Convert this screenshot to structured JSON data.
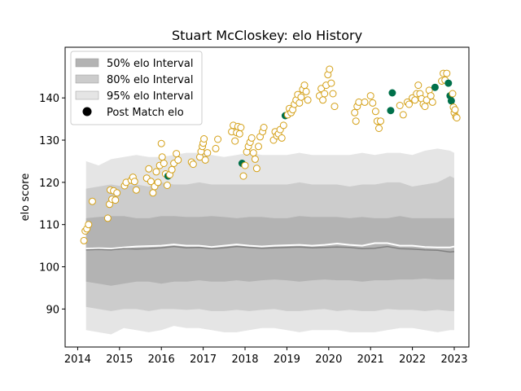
{
  "chart_data": {
    "type": "scatter",
    "title": "Stuart McCloskey: elo History",
    "xlabel": "",
    "ylabel": "elo score",
    "xlim": [
      2013.7,
      2023.35
    ],
    "ylim": [
      81,
      152
    ],
    "x_ticks": [
      "2014",
      "2015",
      "2016",
      "2017",
      "2018",
      "2019",
      "2020",
      "2021",
      "2022",
      "2023"
    ],
    "y_ticks": [
      "90",
      "100",
      "110",
      "120",
      "130",
      "140"
    ],
    "legend_position": "top-left",
    "legend": [
      {
        "label": "50% elo Interval",
        "kind": "band50"
      },
      {
        "label": "80% elo Interval",
        "kind": "band80"
      },
      {
        "label": "95% elo Interval",
        "kind": "band95"
      },
      {
        "label": "Post Match elo",
        "kind": "point"
      }
    ],
    "colors": {
      "band50": "#b3b3b3",
      "band80": "#cccccc",
      "band95": "#e5e5e5",
      "median": "#808080",
      "mean": "#ffffff",
      "point_face": "#ffffff",
      "point_edge": "#d4a017",
      "win": "#00704a"
    },
    "interval_series": {
      "x": [
        2014.2,
        2014.5,
        2014.8,
        2015.1,
        2015.4,
        2015.7,
        2016.0,
        2016.3,
        2016.6,
        2016.9,
        2017.2,
        2017.5,
        2017.8,
        2018.1,
        2018.4,
        2018.7,
        2019.0,
        2019.3,
        2019.6,
        2019.9,
        2020.2,
        2020.5,
        2020.8,
        2021.1,
        2021.4,
        2021.7,
        2022.0,
        2022.3,
        2022.6,
        2022.9,
        2023.0
      ],
      "median": [
        104.0,
        104.1,
        104.0,
        104.3,
        104.2,
        104.3,
        104.5,
        104.8,
        104.5,
        104.6,
        104.3,
        104.5,
        104.8,
        104.6,
        104.4,
        104.5,
        104.6,
        104.7,
        104.5,
        104.6,
        104.7,
        104.6,
        104.3,
        104.4,
        104.8,
        104.3,
        104.2,
        104.0,
        103.9,
        103.5,
        103.6
      ],
      "mean": [
        104.3,
        104.4,
        104.3,
        104.6,
        104.8,
        104.9,
        105.0,
        105.3,
        105.0,
        105.0,
        104.7,
        105.0,
        105.3,
        105.0,
        104.8,
        105.0,
        105.1,
        105.2,
        105.0,
        105.2,
        105.5,
        105.2,
        105.0,
        105.6,
        105.6,
        105.0,
        105.0,
        104.7,
        104.6,
        104.6,
        104.8
      ],
      "p25": [
        96.5,
        96.0,
        95.5,
        96.0,
        96.5,
        96.5,
        96.0,
        96.5,
        96.5,
        96.8,
        96.5,
        96.5,
        96.8,
        96.5,
        96.8,
        97.0,
        96.8,
        96.5,
        96.8,
        97.0,
        96.8,
        96.8,
        96.5,
        96.8,
        96.8,
        97.0,
        97.0,
        97.2,
        97.0,
        97.0,
        97.0
      ],
      "p75": [
        111.5,
        111.8,
        112.0,
        112.0,
        111.5,
        111.5,
        112.0,
        112.0,
        111.8,
        111.8,
        112.0,
        111.8,
        111.5,
        111.8,
        111.8,
        111.5,
        111.5,
        112.0,
        111.8,
        111.8,
        111.8,
        111.5,
        111.8,
        111.5,
        111.5,
        112.0,
        111.5,
        111.5,
        111.5,
        111.5,
        111.5
      ],
      "p10": [
        90.5,
        90.0,
        89.5,
        90.0,
        90.0,
        89.5,
        90.0,
        90.0,
        89.8,
        90.0,
        89.5,
        89.5,
        89.8,
        89.5,
        89.8,
        90.0,
        89.5,
        89.5,
        89.8,
        90.0,
        89.5,
        89.8,
        89.5,
        89.5,
        90.0,
        89.8,
        89.8,
        89.5,
        89.8,
        89.5,
        89.5
      ],
      "p90": [
        118.5,
        119.0,
        119.5,
        119.0,
        119.5,
        119.0,
        120.0,
        119.5,
        119.5,
        120.0,
        119.5,
        119.5,
        119.5,
        119.5,
        119.5,
        119.5,
        119.5,
        120.0,
        119.5,
        119.5,
        119.5,
        119.0,
        119.5,
        119.5,
        120.0,
        120.0,
        119.0,
        119.5,
        120.0,
        121.5,
        121.0
      ],
      "p2_5": [
        85.0,
        84.5,
        84.0,
        85.5,
        85.0,
        84.5,
        85.0,
        86.0,
        85.5,
        85.5,
        85.0,
        84.5,
        84.5,
        85.0,
        85.5,
        85.5,
        85.0,
        84.5,
        85.0,
        85.0,
        85.0,
        84.5,
        84.5,
        84.5,
        85.0,
        85.5,
        85.5,
        85.0,
        84.5,
        85.0,
        85.0
      ],
      "p97_5": [
        125.0,
        124.0,
        125.5,
        126.0,
        126.5,
        126.0,
        126.0,
        126.5,
        127.0,
        127.0,
        126.5,
        126.0,
        126.5,
        127.0,
        126.5,
        126.5,
        126.5,
        127.0,
        126.5,
        126.5,
        126.5,
        126.5,
        127.0,
        126.5,
        127.0,
        127.0,
        126.5,
        127.5,
        128.0,
        127.5,
        127.0
      ]
    },
    "points": [
      {
        "x": 2014.15,
        "y": 106.2,
        "win": false
      },
      {
        "x": 2014.18,
        "y": 108.5,
        "win": false
      },
      {
        "x": 2014.22,
        "y": 109.0,
        "win": false
      },
      {
        "x": 2014.26,
        "y": 110.0,
        "win": false
      },
      {
        "x": 2014.35,
        "y": 115.5,
        "win": false
      },
      {
        "x": 2014.72,
        "y": 111.5,
        "win": false
      },
      {
        "x": 2014.76,
        "y": 114.8,
        "win": false
      },
      {
        "x": 2014.78,
        "y": 118.2,
        "win": false
      },
      {
        "x": 2014.82,
        "y": 116.0,
        "win": false
      },
      {
        "x": 2014.86,
        "y": 118.0,
        "win": false
      },
      {
        "x": 2014.9,
        "y": 115.8,
        "win": false
      },
      {
        "x": 2014.94,
        "y": 117.5,
        "win": false
      },
      {
        "x": 2015.12,
        "y": 119.2,
        "win": false
      },
      {
        "x": 2015.16,
        "y": 120.0,
        "win": false
      },
      {
        "x": 2015.28,
        "y": 120.5,
        "win": false
      },
      {
        "x": 2015.32,
        "y": 121.2,
        "win": false
      },
      {
        "x": 2015.36,
        "y": 120.2,
        "win": false
      },
      {
        "x": 2015.4,
        "y": 118.2,
        "win": false
      },
      {
        "x": 2015.65,
        "y": 121.0,
        "win": false
      },
      {
        "x": 2015.7,
        "y": 123.2,
        "win": false
      },
      {
        "x": 2015.75,
        "y": 120.2,
        "win": false
      },
      {
        "x": 2015.8,
        "y": 117.5,
        "win": false
      },
      {
        "x": 2015.84,
        "y": 119.0,
        "win": false
      },
      {
        "x": 2015.88,
        "y": 122.5,
        "win": false
      },
      {
        "x": 2015.92,
        "y": 120.0,
        "win": false
      },
      {
        "x": 2015.96,
        "y": 124.0,
        "win": false
      },
      {
        "x": 2016.0,
        "y": 129.2,
        "win": false
      },
      {
        "x": 2016.02,
        "y": 126.0,
        "win": false
      },
      {
        "x": 2016.06,
        "y": 124.5,
        "win": false
      },
      {
        "x": 2016.1,
        "y": 122.0,
        "win": false
      },
      {
        "x": 2016.14,
        "y": 119.3,
        "win": false
      },
      {
        "x": 2016.16,
        "y": 121.5,
        "win": true
      },
      {
        "x": 2016.2,
        "y": 121.8,
        "win": false
      },
      {
        "x": 2016.25,
        "y": 123.0,
        "win": false
      },
      {
        "x": 2016.3,
        "y": 124.5,
        "win": false
      },
      {
        "x": 2016.36,
        "y": 126.8,
        "win": false
      },
      {
        "x": 2016.4,
        "y": 125.3,
        "win": false
      },
      {
        "x": 2016.72,
        "y": 124.8,
        "win": false
      },
      {
        "x": 2016.76,
        "y": 124.3,
        "win": false
      },
      {
        "x": 2016.92,
        "y": 126.0,
        "win": false
      },
      {
        "x": 2016.95,
        "y": 127.3,
        "win": false
      },
      {
        "x": 2016.98,
        "y": 128.5,
        "win": false
      },
      {
        "x": 2017.0,
        "y": 129.3,
        "win": false
      },
      {
        "x": 2017.02,
        "y": 130.3,
        "win": false
      },
      {
        "x": 2017.05,
        "y": 125.3,
        "win": false
      },
      {
        "x": 2017.1,
        "y": 127.0,
        "win": false
      },
      {
        "x": 2017.3,
        "y": 128.0,
        "win": false
      },
      {
        "x": 2017.35,
        "y": 130.2,
        "win": false
      },
      {
        "x": 2017.68,
        "y": 132.0,
        "win": false
      },
      {
        "x": 2017.72,
        "y": 133.5,
        "win": false
      },
      {
        "x": 2017.76,
        "y": 129.8,
        "win": false
      },
      {
        "x": 2017.8,
        "y": 131.8,
        "win": false
      },
      {
        "x": 2017.83,
        "y": 133.2,
        "win": false
      },
      {
        "x": 2017.87,
        "y": 131.5,
        "win": false
      },
      {
        "x": 2017.9,
        "y": 133.0,
        "win": false
      },
      {
        "x": 2017.93,
        "y": 124.5,
        "win": true
      },
      {
        "x": 2017.96,
        "y": 121.5,
        "win": false
      },
      {
        "x": 2018.0,
        "y": 124.0,
        "win": false
      },
      {
        "x": 2018.04,
        "y": 127.2,
        "win": false
      },
      {
        "x": 2018.08,
        "y": 128.5,
        "win": false
      },
      {
        "x": 2018.12,
        "y": 129.5,
        "win": false
      },
      {
        "x": 2018.16,
        "y": 130.5,
        "win": false
      },
      {
        "x": 2018.2,
        "y": 127.0,
        "win": false
      },
      {
        "x": 2018.24,
        "y": 125.5,
        "win": false
      },
      {
        "x": 2018.28,
        "y": 123.3,
        "win": false
      },
      {
        "x": 2018.32,
        "y": 128.5,
        "win": false
      },
      {
        "x": 2018.36,
        "y": 130.8,
        "win": false
      },
      {
        "x": 2018.42,
        "y": 132.0,
        "win": false
      },
      {
        "x": 2018.45,
        "y": 133.0,
        "win": false
      },
      {
        "x": 2018.68,
        "y": 130.0,
        "win": false
      },
      {
        "x": 2018.72,
        "y": 132.0,
        "win": false
      },
      {
        "x": 2018.76,
        "y": 131.0,
        "win": false
      },
      {
        "x": 2018.8,
        "y": 131.5,
        "win": false
      },
      {
        "x": 2018.84,
        "y": 132.5,
        "win": false
      },
      {
        "x": 2018.88,
        "y": 130.5,
        "win": false
      },
      {
        "x": 2018.92,
        "y": 133.5,
        "win": false
      },
      {
        "x": 2018.96,
        "y": 135.8,
        "win": true
      },
      {
        "x": 2019.02,
        "y": 136.0,
        "win": false
      },
      {
        "x": 2019.06,
        "y": 137.5,
        "win": false
      },
      {
        "x": 2019.1,
        "y": 136.5,
        "win": false
      },
      {
        "x": 2019.14,
        "y": 137.2,
        "win": false
      },
      {
        "x": 2019.18,
        "y": 138.5,
        "win": false
      },
      {
        "x": 2019.22,
        "y": 139.5,
        "win": false
      },
      {
        "x": 2019.26,
        "y": 140.8,
        "win": false
      },
      {
        "x": 2019.3,
        "y": 138.8,
        "win": false
      },
      {
        "x": 2019.34,
        "y": 140.2,
        "win": false
      },
      {
        "x": 2019.38,
        "y": 142.0,
        "win": false
      },
      {
        "x": 2019.42,
        "y": 143.0,
        "win": false
      },
      {
        "x": 2019.46,
        "y": 141.5,
        "win": false
      },
      {
        "x": 2019.5,
        "y": 139.5,
        "win": false
      },
      {
        "x": 2019.78,
        "y": 140.5,
        "win": false
      },
      {
        "x": 2019.82,
        "y": 142.2,
        "win": false
      },
      {
        "x": 2019.86,
        "y": 139.5,
        "win": false
      },
      {
        "x": 2019.9,
        "y": 141.0,
        "win": false
      },
      {
        "x": 2019.94,
        "y": 143.0,
        "win": false
      },
      {
        "x": 2019.98,
        "y": 145.5,
        "win": false
      },
      {
        "x": 2020.02,
        "y": 146.8,
        "win": false
      },
      {
        "x": 2020.06,
        "y": 143.5,
        "win": false
      },
      {
        "x": 2020.1,
        "y": 141.0,
        "win": false
      },
      {
        "x": 2020.14,
        "y": 138.0,
        "win": false
      },
      {
        "x": 2020.62,
        "y": 136.5,
        "win": false
      },
      {
        "x": 2020.65,
        "y": 134.5,
        "win": false
      },
      {
        "x": 2020.68,
        "y": 138.0,
        "win": false
      },
      {
        "x": 2020.72,
        "y": 139.0,
        "win": false
      },
      {
        "x": 2020.86,
        "y": 139.0,
        "win": false
      },
      {
        "x": 2021.0,
        "y": 140.5,
        "win": false
      },
      {
        "x": 2021.05,
        "y": 138.8,
        "win": false
      },
      {
        "x": 2021.12,
        "y": 136.8,
        "win": false
      },
      {
        "x": 2021.16,
        "y": 134.5,
        "win": false
      },
      {
        "x": 2021.2,
        "y": 132.8,
        "win": false
      },
      {
        "x": 2021.24,
        "y": 134.5,
        "win": false
      },
      {
        "x": 2021.48,
        "y": 137.0,
        "win": true
      },
      {
        "x": 2021.52,
        "y": 141.2,
        "win": true
      },
      {
        "x": 2021.7,
        "y": 138.2,
        "win": false
      },
      {
        "x": 2021.78,
        "y": 136.0,
        "win": false
      },
      {
        "x": 2021.88,
        "y": 139.0,
        "win": false
      },
      {
        "x": 2021.92,
        "y": 138.5,
        "win": false
      },
      {
        "x": 2022.0,
        "y": 140.0,
        "win": false
      },
      {
        "x": 2022.06,
        "y": 139.5,
        "win": false
      },
      {
        "x": 2022.1,
        "y": 141.0,
        "win": false
      },
      {
        "x": 2022.14,
        "y": 143.0,
        "win": false
      },
      {
        "x": 2022.18,
        "y": 141.0,
        "win": false
      },
      {
        "x": 2022.22,
        "y": 139.8,
        "win": false
      },
      {
        "x": 2022.26,
        "y": 138.5,
        "win": false
      },
      {
        "x": 2022.3,
        "y": 138.0,
        "win": false
      },
      {
        "x": 2022.34,
        "y": 139.5,
        "win": false
      },
      {
        "x": 2022.4,
        "y": 141.8,
        "win": false
      },
      {
        "x": 2022.44,
        "y": 140.5,
        "win": false
      },
      {
        "x": 2022.48,
        "y": 139.0,
        "win": false
      },
      {
        "x": 2022.54,
        "y": 142.5,
        "win": true
      },
      {
        "x": 2022.7,
        "y": 144.0,
        "win": false
      },
      {
        "x": 2022.74,
        "y": 145.8,
        "win": false
      },
      {
        "x": 2022.78,
        "y": 144.2,
        "win": false
      },
      {
        "x": 2022.82,
        "y": 145.8,
        "win": false
      },
      {
        "x": 2022.86,
        "y": 143.5,
        "win": true
      },
      {
        "x": 2022.9,
        "y": 140.5,
        "win": true
      },
      {
        "x": 2022.93,
        "y": 139.3,
        "win": true
      },
      {
        "x": 2022.96,
        "y": 141.0,
        "win": false
      },
      {
        "x": 2022.98,
        "y": 137.8,
        "win": false
      },
      {
        "x": 2023.0,
        "y": 136.5,
        "win": false
      },
      {
        "x": 2023.02,
        "y": 137.2,
        "win": false
      },
      {
        "x": 2023.04,
        "y": 135.5,
        "win": false
      },
      {
        "x": 2023.06,
        "y": 135.3,
        "win": false
      }
    ]
  }
}
